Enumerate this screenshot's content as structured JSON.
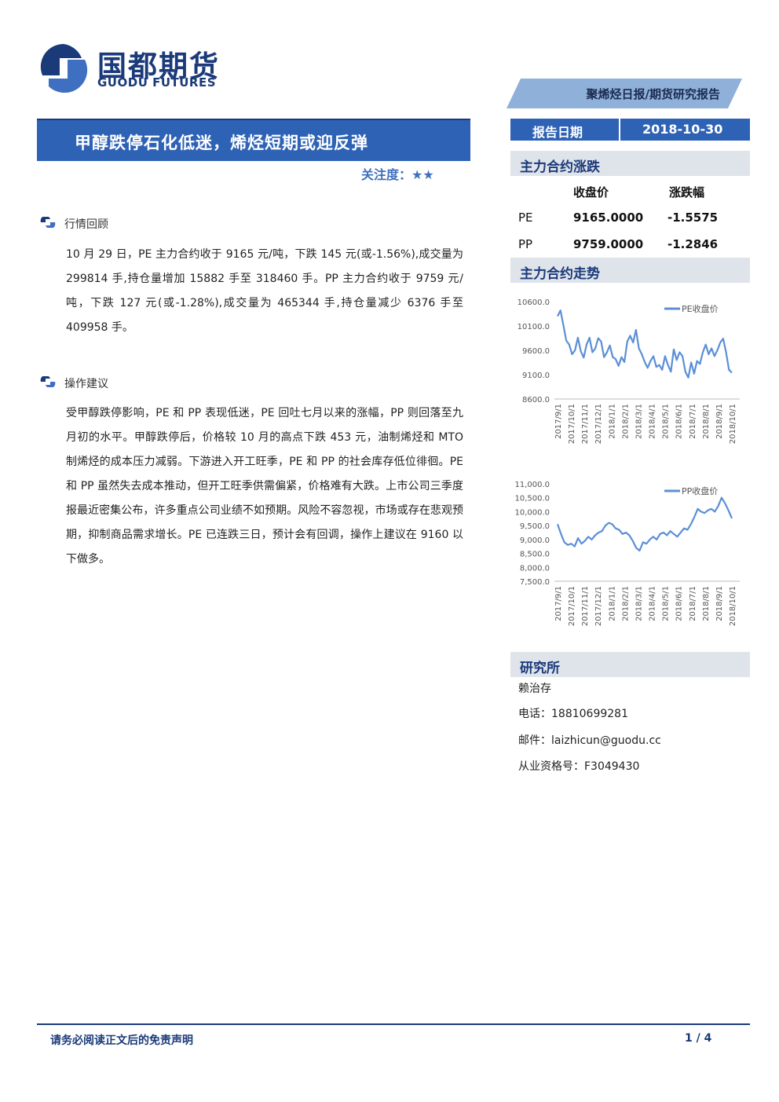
{
  "header": {
    "logo_cn": "国都期货",
    "logo_en": "GUODU FUTURES",
    "report_type": "聚烯烃日报/期货研究报告",
    "title": "甲醇跌停石化低迷，烯烃短期或迎反弹",
    "attention_label": "关注度：",
    "attention_stars": 2,
    "attention_stars_text": "★★"
  },
  "report_date": {
    "label": "报告日期",
    "value": "2018-10-30"
  },
  "sections": [
    {
      "title": "行情回顾",
      "body": "10 月 29 日，PE 主力合约收于 9165 元/吨，下跌 145 元(或-1.56%),成交量为 299814 手,持仓量增加 15882 手至 318460 手。PP 主力合约收于 9759 元/吨，下跌 127 元(或-1.28%),成交量为 465344 手,持仓量减少 6376 手至 409958 手。"
    },
    {
      "title": "操作建议",
      "body": "受甲醇跌停影响，PE 和 PP 表现低迷，PE 回吐七月以来的涨幅，PP 则回落至九月初的水平。甲醇跌停后，价格较 10 月的高点下跌 453 元，油制烯烃和 MTO 制烯烃的成本压力减弱。下游进入开工旺季，PE 和 PP 的社会库存低位徘徊。PE 和 PP 虽然失去成本推动，但开工旺季供需偏紧，价格难有大跌。上市公司三季度报最近密集公布，许多重点公司业绩不如预期。风险不容忽视，市场或存在悲观预期，抑制商品需求增长。PE 已连跌三日，预计会有回调，操作上建议在 9160 以下做多。"
    }
  ],
  "main_contract_change": {
    "heading": "主力合约涨跌",
    "col_close": "收盘价",
    "col_change": "涨跌幅",
    "rows": [
      {
        "name": "PE",
        "close": "9165.0000",
        "change": "-1.5575"
      },
      {
        "name": "PP",
        "close": "9759.0000",
        "change": "-1.2846"
      }
    ]
  },
  "trend_heading": "主力合约走势",
  "chart_data": [
    {
      "type": "line",
      "series": [
        {
          "name": "PE收盘价",
          "values": [
            10300,
            10420,
            10120,
            9800,
            9720,
            9520,
            9600,
            9860,
            9580,
            9450,
            9720,
            9860,
            9560,
            9640,
            9850,
            9780,
            9460,
            9560,
            9700,
            9460,
            9420,
            9280,
            9460,
            9360,
            9780,
            9900,
            9760,
            10020,
            9640,
            9520,
            9360,
            9240,
            9380,
            9480,
            9260,
            9300,
            9200,
            9480,
            9300,
            9160,
            9620,
            9400,
            9560,
            9480,
            9160,
            9040,
            9350,
            9120,
            9380,
            9320,
            9560,
            9720,
            9520,
            9640,
            9480,
            9600,
            9760,
            9840,
            9560,
            9200,
            9140
          ]
        }
      ],
      "ylim": [
        8600,
        10600
      ],
      "yticks": [
        "10600.0",
        "10100.0",
        "9600.0",
        "9100.0",
        "8600.0"
      ],
      "x_tick_labels": [
        "2017/9/1",
        "2017/10/1",
        "2017/11/1",
        "2017/12/1",
        "2018/1/1",
        "2018/2/1",
        "2018/3/1",
        "2018/4/1",
        "2018/5/1",
        "2018/6/1",
        "2018/7/1",
        "2018/8/1",
        "2018/9/1",
        "2018/10/1"
      ],
      "legend_position": "top-right",
      "color": "#5b8fd6"
    },
    {
      "type": "line",
      "series": [
        {
          "name": "PP收盘价",
          "values": [
            9550,
            9200,
            8900,
            8800,
            8850,
            8750,
            9050,
            8850,
            8950,
            9100,
            9000,
            9150,
            9250,
            9300,
            9500,
            9600,
            9550,
            9400,
            9350,
            9200,
            9250,
            9150,
            8950,
            8700,
            8600,
            8900,
            8850,
            9000,
            9100,
            9000,
            9200,
            9250,
            9150,
            9300,
            9200,
            9100,
            9250,
            9400,
            9350,
            9550,
            9800,
            10100,
            10000,
            9950,
            10050,
            10100,
            10000,
            10200,
            10500,
            10300,
            10050,
            9760
          ]
        }
      ],
      "ylim": [
        7500,
        11000
      ],
      "yticks": [
        "11,000.0",
        "10,500.0",
        "10,000.0",
        "9,500.0",
        "9,000.0",
        "8,500.0",
        "8,000.0",
        "7,500.0"
      ],
      "x_tick_labels": [
        "2017/9/1",
        "2017/10/1",
        "2017/11/1",
        "2017/12/1",
        "2018/1/1",
        "2018/2/1",
        "2018/3/1",
        "2018/4/1",
        "2018/5/1",
        "2018/6/1",
        "2018/7/1",
        "2018/8/1",
        "2018/9/1",
        "2018/10/1"
      ],
      "legend_position": "top-right",
      "color": "#5b8fd6"
    }
  ],
  "institute": {
    "heading": "研究所",
    "analyst": "赖治存",
    "phone_label": "电话：",
    "phone": "18810699281",
    "email_label": "邮件：",
    "email": "laizhicun@guodu.cc",
    "license_label": "从业资格号：",
    "license": "F3049430"
  },
  "footer": {
    "disclaimer": "请务必阅读正文后的免责声明",
    "page": "1 / 4"
  }
}
